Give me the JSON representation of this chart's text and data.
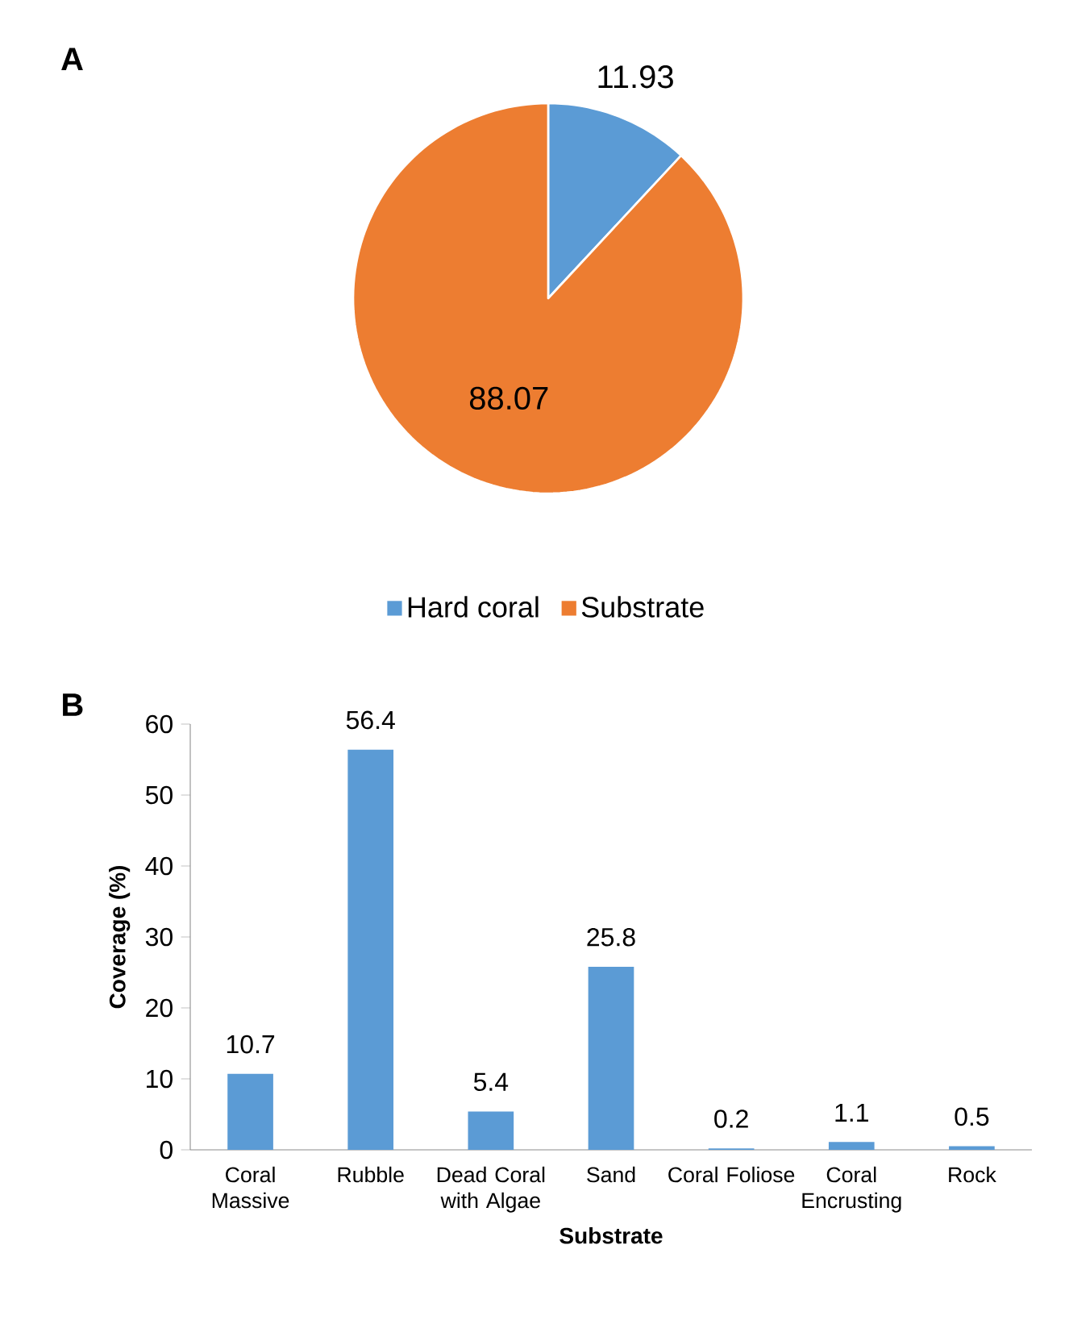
{
  "chart_data": [
    {
      "type": "pie",
      "title": "A",
      "categories": [
        "Hard coral",
        "Substrate"
      ],
      "values": [
        11.93,
        88.07
      ],
      "colors": [
        "#5b9bd5",
        "#ed7d31"
      ],
      "data_labels": true,
      "legend": "bottom"
    },
    {
      "type": "bar",
      "title": "B",
      "categories": [
        "Coral Massive",
        "Rubble",
        "Dead Coral with Algae",
        "Sand",
        "Coral Foliose",
        "Coral Encrusting",
        "Rock"
      ],
      "values": [
        10.7,
        56.4,
        5.4,
        25.8,
        0.2,
        1.1,
        0.5
      ],
      "color": "#5b9bd5",
      "xlabel": "Substrate",
      "ylabel": "Coverage (%)",
      "ylim": [
        0,
        60
      ],
      "yticks": [
        0,
        10,
        20,
        30,
        40,
        50,
        60
      ],
      "data_labels": true,
      "grid": false
    }
  ]
}
